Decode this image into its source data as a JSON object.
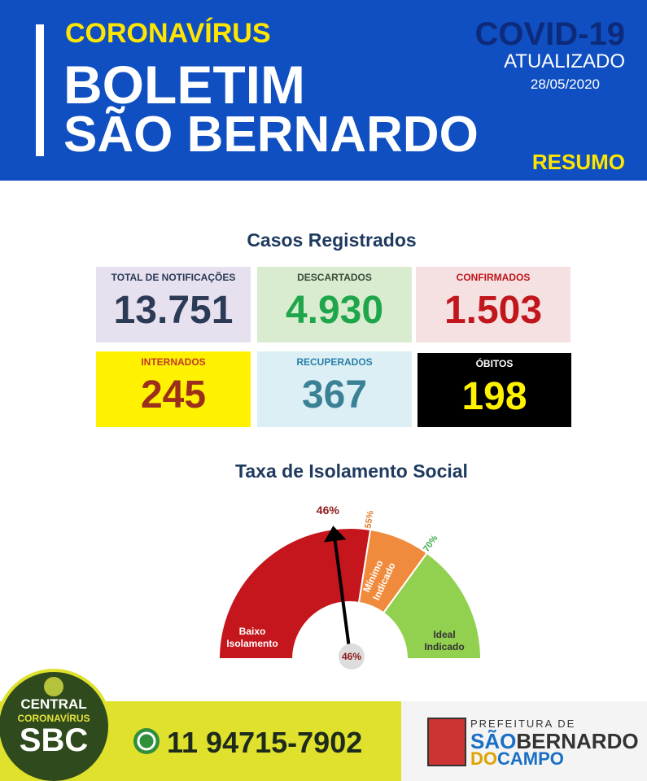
{
  "header": {
    "kicker": "CORONAVÍRUS",
    "title_line_1": "BOLETIM",
    "title_line_2": "SÃO BERNARDO",
    "badge": "COVID-19",
    "status": "ATUALIZADO",
    "date": "28/05/2020",
    "section": "RESUMO"
  },
  "cases": {
    "title": "Casos Registrados",
    "cards": [
      {
        "label": "TOTAL DE NOTIFICAÇÕES",
        "value": "13.751"
      },
      {
        "label": "DESCARTADOS",
        "value": "4.930"
      },
      {
        "label": "CONFIRMADOS",
        "value": "1.503"
      },
      {
        "label": "INTERNADOS",
        "value": "245"
      },
      {
        "label": "RECUPERADOS",
        "value": "367"
      },
      {
        "label": "ÓBITOS",
        "value": "198"
      }
    ]
  },
  "gauge": {
    "title": "Taxa de Isolamento Social",
    "lim": [
      0,
      100
    ],
    "value": 46,
    "value_label": "46%",
    "thresholds": [
      {
        "value": 55,
        "label": "55%"
      },
      {
        "value": 70,
        "label": "70%"
      }
    ],
    "zones": [
      {
        "lines": [
          "Baixo",
          "Isolamento"
        ]
      },
      {
        "lines": [
          "Mínimo",
          "Indicado"
        ]
      },
      {
        "lines": [
          "Ideal",
          "Indicado"
        ]
      }
    ]
  },
  "footer": {
    "badge_lines": [
      "CENTRAL",
      "CORONAVÍRUS",
      "SBC"
    ],
    "phone": "11 94715-7902",
    "logo": {
      "top": "PREFEITURA DE",
      "line_1_a": "SÃO",
      "line_1_b": "BERNARDO",
      "line_2_a": "DO",
      "line_2_b": "CAMPO"
    }
  }
}
